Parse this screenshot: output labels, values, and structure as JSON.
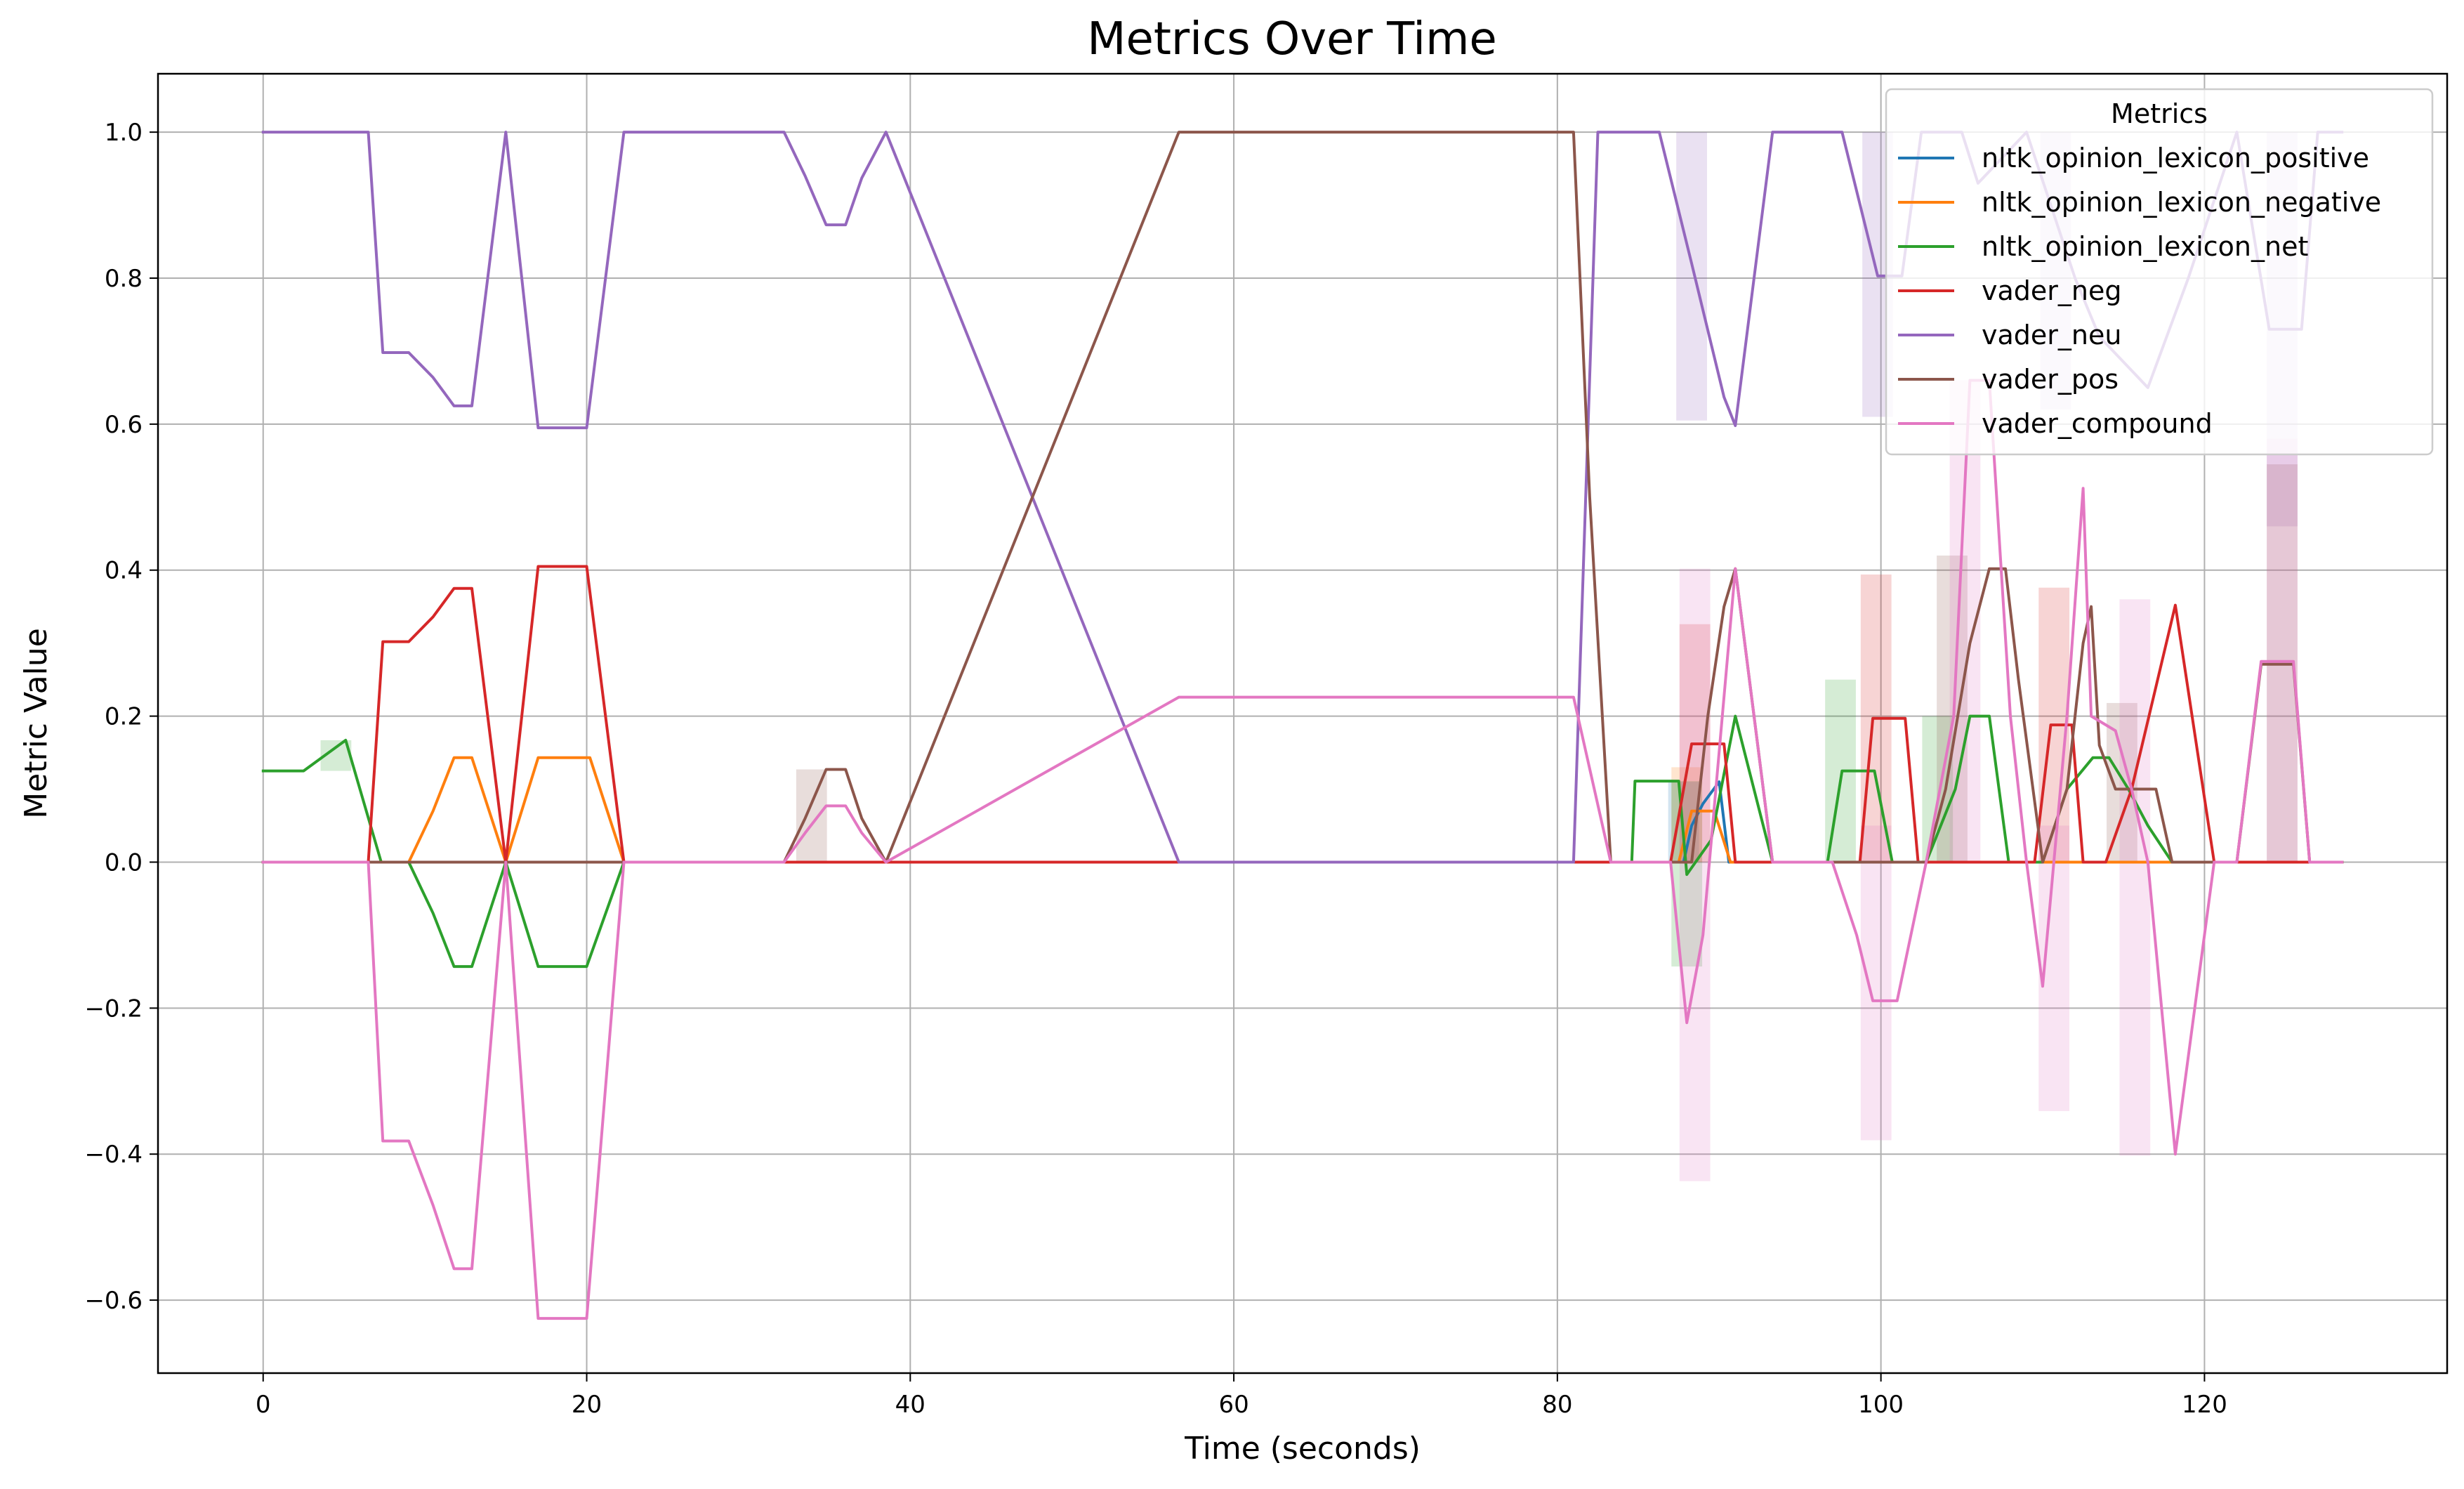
{
  "chart_data": {
    "type": "line",
    "title": "Metrics Over Time",
    "xlabel": "Time (seconds)",
    "ylabel": "Metric Value",
    "xlim": [
      -6.5,
      135
    ],
    "ylim": [
      -0.7,
      1.08
    ],
    "xticks": [
      0,
      20,
      40,
      60,
      80,
      100,
      120
    ],
    "xtick_labels": [
      "0",
      "20",
      "40",
      "60",
      "80",
      "100",
      "120"
    ],
    "yticks": [
      -0.6,
      -0.4,
      -0.2,
      0.0,
      0.2,
      0.4,
      0.6,
      0.8,
      1.0
    ],
    "ytick_labels": [
      "−0.6",
      "−0.4",
      "−0.2",
      "0.0",
      "0.2",
      "0.4",
      "0.6",
      "0.8",
      "1.0"
    ],
    "grid": true,
    "legend": {
      "title": "Metrics",
      "placement": "top-right"
    },
    "series": [
      {
        "name": "nltk_opinion_lexicon_positive",
        "color": "#1f77b4",
        "points": [
          [
            0,
            0
          ],
          [
            87.8,
            0
          ],
          [
            88.3,
            0.05
          ],
          [
            89,
            0.08
          ],
          [
            90,
            0.11
          ],
          [
            90.6,
            0
          ],
          [
            128.5,
            0
          ]
        ],
        "bands": [
          [
            87.8,
            0,
            0.11
          ]
        ]
      },
      {
        "name": "nltk_opinion_lexicon_negative",
        "color": "#ff7f0e",
        "points": [
          [
            0,
            0
          ],
          [
            9,
            0
          ],
          [
            10.5,
            0.07
          ],
          [
            11.8,
            0.143
          ],
          [
            12.9,
            0.143
          ],
          [
            15,
            0
          ],
          [
            17,
            0.143
          ],
          [
            19.5,
            0.143
          ],
          [
            20.2,
            0.143
          ],
          [
            22.3,
            0
          ],
          [
            87.5,
            0
          ],
          [
            88.3,
            0.07
          ],
          [
            89.7,
            0.07
          ],
          [
            90.7,
            0
          ],
          [
            128.5,
            0
          ]
        ],
        "bands": [
          [
            88,
            0,
            0.13
          ]
        ]
      },
      {
        "name": "nltk_opinion_lexicon_net",
        "color": "#2ca02c",
        "points": [
          [
            0,
            0.125
          ],
          [
            2.5,
            0.125
          ],
          [
            5.1,
            0.167
          ],
          [
            7.3,
            0
          ],
          [
            9,
            0
          ],
          [
            10.5,
            -0.07
          ],
          [
            11.8,
            -0.143
          ],
          [
            12.9,
            -0.143
          ],
          [
            15,
            0
          ],
          [
            17,
            -0.143
          ],
          [
            20,
            -0.143
          ],
          [
            22.3,
            0
          ],
          [
            84.6,
            0
          ],
          [
            84.8,
            0.111
          ],
          [
            86.8,
            0.111
          ],
          [
            87.5,
            0.111
          ],
          [
            88,
            -0.017
          ],
          [
            89.5,
            0.03
          ],
          [
            91,
            0.2
          ],
          [
            93.3,
            0
          ],
          [
            96.7,
            0
          ],
          [
            97.6,
            0.125
          ],
          [
            99.6,
            0.125
          ],
          [
            100.7,
            0
          ],
          [
            102.8,
            0
          ],
          [
            104.6,
            0.1
          ],
          [
            105.5,
            0.2
          ],
          [
            106.7,
            0.2
          ],
          [
            107.9,
            0
          ],
          [
            110,
            0
          ],
          [
            111.5,
            0.1
          ],
          [
            113.1,
            0.143
          ],
          [
            114.1,
            0.143
          ],
          [
            115.3,
            0.1
          ],
          [
            116.5,
            0.05
          ],
          [
            118,
            0
          ],
          [
            128.5,
            0
          ]
        ],
        "bands": [
          [
            4.5,
            0.125,
            0.167
          ],
          [
            88,
            -0.143,
            0.111
          ],
          [
            97.5,
            0,
            0.25
          ],
          [
            103.5,
            0,
            0.2
          ]
        ]
      },
      {
        "name": "vader_neg",
        "color": "#d62728",
        "points": [
          [
            0,
            0
          ],
          [
            6.5,
            0
          ],
          [
            7.4,
            0.302
          ],
          [
            9,
            0.302
          ],
          [
            10.5,
            0.336
          ],
          [
            11.8,
            0.375
          ],
          [
            12.9,
            0.375
          ],
          [
            15,
            0
          ],
          [
            17,
            0.405
          ],
          [
            20,
            0.405
          ],
          [
            22.3,
            0
          ],
          [
            87,
            0
          ],
          [
            88.3,
            0.162
          ],
          [
            90.3,
            0.162
          ],
          [
            91,
            0
          ],
          [
            98.7,
            0
          ],
          [
            99.5,
            0.197
          ],
          [
            101.5,
            0.197
          ],
          [
            102.3,
            0
          ],
          [
            109.5,
            0
          ],
          [
            110.5,
            0.188
          ],
          [
            111.8,
            0.188
          ],
          [
            112.5,
            0
          ],
          [
            113.9,
            0
          ],
          [
            115.5,
            0.1
          ],
          [
            118.2,
            0.352
          ],
          [
            120.6,
            0
          ],
          [
            128.5,
            0
          ]
        ],
        "bands": [
          [
            88.5,
            0,
            0.326
          ],
          [
            99.7,
            0,
            0.394
          ],
          [
            110.7,
            0,
            0.376
          ]
        ]
      },
      {
        "name": "vader_neu",
        "color": "#9467bd",
        "points": [
          [
            0,
            1
          ],
          [
            6.5,
            1
          ],
          [
            7.4,
            0.698
          ],
          [
            9,
            0.698
          ],
          [
            10.5,
            0.664
          ],
          [
            11.8,
            0.625
          ],
          [
            12.9,
            0.625
          ],
          [
            15,
            1
          ],
          [
            17,
            0.595
          ],
          [
            20,
            0.595
          ],
          [
            22.3,
            1
          ],
          [
            32.2,
            1
          ],
          [
            33.5,
            0.94
          ],
          [
            34.8,
            0.873
          ],
          [
            36,
            0.873
          ],
          [
            37,
            0.937
          ],
          [
            38.5,
            1
          ],
          [
            56.6,
            0
          ],
          [
            81,
            0
          ],
          [
            82.5,
            1
          ],
          [
            86.3,
            1
          ],
          [
            88.3,
            0.82
          ],
          [
            90.3,
            0.637
          ],
          [
            91,
            0.598
          ],
          [
            93.3,
            1
          ],
          [
            97.6,
            1
          ],
          [
            99.8,
            0.803
          ],
          [
            101.3,
            0.803
          ],
          [
            102.5,
            1
          ],
          [
            105,
            1
          ],
          [
            106,
            0.93
          ],
          [
            109,
            1
          ],
          [
            112,
            0.8
          ],
          [
            113.5,
            0.72
          ],
          [
            116.5,
            0.65
          ],
          [
            119,
            0.8
          ],
          [
            122,
            1
          ],
          [
            124,
            0.73
          ],
          [
            126,
            0.73
          ],
          [
            127,
            1
          ],
          [
            128.5,
            1
          ]
        ],
        "bands": [
          [
            88.3,
            0.605,
            1
          ],
          [
            99.8,
            0.61,
            1
          ],
          [
            110.8,
            0.62,
            1
          ],
          [
            124.8,
            0.46,
            1
          ]
        ]
      },
      {
        "name": "vader_pos",
        "color": "#8c564b",
        "points": [
          [
            0,
            0
          ],
          [
            32.2,
            0
          ],
          [
            33.5,
            0.06
          ],
          [
            34.8,
            0.127
          ],
          [
            36,
            0.127
          ],
          [
            37,
            0.06
          ],
          [
            38.5,
            0
          ],
          [
            56.6,
            1
          ],
          [
            81,
            1
          ],
          [
            82,
            0.5
          ],
          [
            83.3,
            0
          ],
          [
            88.3,
            0
          ],
          [
            89.3,
            0.2
          ],
          [
            90.3,
            0.35
          ],
          [
            91,
            0.402
          ],
          [
            93.3,
            0
          ],
          [
            102.8,
            0
          ],
          [
            104,
            0.1
          ],
          [
            105.5,
            0.3
          ],
          [
            106.7,
            0.402
          ],
          [
            107.7,
            0.402
          ],
          [
            108.5,
            0.25
          ],
          [
            110,
            0
          ],
          [
            111.5,
            0.1
          ],
          [
            112.5,
            0.3
          ],
          [
            113,
            0.35
          ],
          [
            113.5,
            0.16
          ],
          [
            114.5,
            0.1
          ],
          [
            117,
            0.1
          ],
          [
            118,
            0
          ],
          [
            122,
            0
          ],
          [
            123.5,
            0.271
          ],
          [
            125.5,
            0.271
          ],
          [
            126.5,
            0
          ],
          [
            128.5,
            0
          ]
        ],
        "bands": [
          [
            33.9,
            0,
            0.127
          ],
          [
            104.4,
            0,
            0.42
          ],
          [
            114.9,
            0,
            0.218
          ],
          [
            124.8,
            0,
            0.545
          ]
        ]
      },
      {
        "name": "vader_compound",
        "color": "#e377c2",
        "points": [
          [
            0,
            0
          ],
          [
            6.5,
            0
          ],
          [
            7.4,
            -0.382
          ],
          [
            9,
            -0.382
          ],
          [
            10.5,
            -0.47
          ],
          [
            11.8,
            -0.557
          ],
          [
            12.9,
            -0.557
          ],
          [
            15,
            0
          ],
          [
            17,
            -0.625
          ],
          [
            20,
            -0.625
          ],
          [
            22.3,
            0
          ],
          [
            32.2,
            0
          ],
          [
            33.5,
            0.04
          ],
          [
            34.8,
            0.077
          ],
          [
            36,
            0.077
          ],
          [
            37,
            0.04
          ],
          [
            38.5,
            0
          ],
          [
            56.6,
            0.226
          ],
          [
            81,
            0.226
          ],
          [
            83.3,
            0
          ],
          [
            87,
            0
          ],
          [
            88,
            -0.22
          ],
          [
            89,
            -0.1
          ],
          [
            91,
            0.402
          ],
          [
            93.3,
            0
          ],
          [
            97,
            0
          ],
          [
            98.5,
            -0.1
          ],
          [
            99.5,
            -0.19
          ],
          [
            101,
            -0.19
          ],
          [
            102.8,
            0
          ],
          [
            104.5,
            0.2
          ],
          [
            105.5,
            0.66
          ],
          [
            106.7,
            0.66
          ],
          [
            108,
            0.2
          ],
          [
            109,
            0
          ],
          [
            110,
            -0.17
          ],
          [
            111.5,
            0.2
          ],
          [
            112.5,
            0.512
          ],
          [
            113,
            0.2
          ],
          [
            114.5,
            0.18
          ],
          [
            115.5,
            0.1
          ],
          [
            116.5,
            0
          ],
          [
            118.2,
            -0.4
          ],
          [
            120.6,
            0
          ],
          [
            122,
            0
          ],
          [
            123.5,
            0.275
          ],
          [
            125.5,
            0.275
          ],
          [
            126.5,
            0
          ],
          [
            128.5,
            0
          ]
        ],
        "bands": [
          [
            88.5,
            -0.437,
            0.402
          ],
          [
            99.7,
            -0.381,
            0.05
          ],
          [
            105.2,
            0,
            0.66
          ],
          [
            110.7,
            -0.341,
            0.05
          ],
          [
            115.7,
            -0.402,
            0.36
          ],
          [
            124.8,
            0,
            0.58
          ]
        ]
      }
    ]
  }
}
